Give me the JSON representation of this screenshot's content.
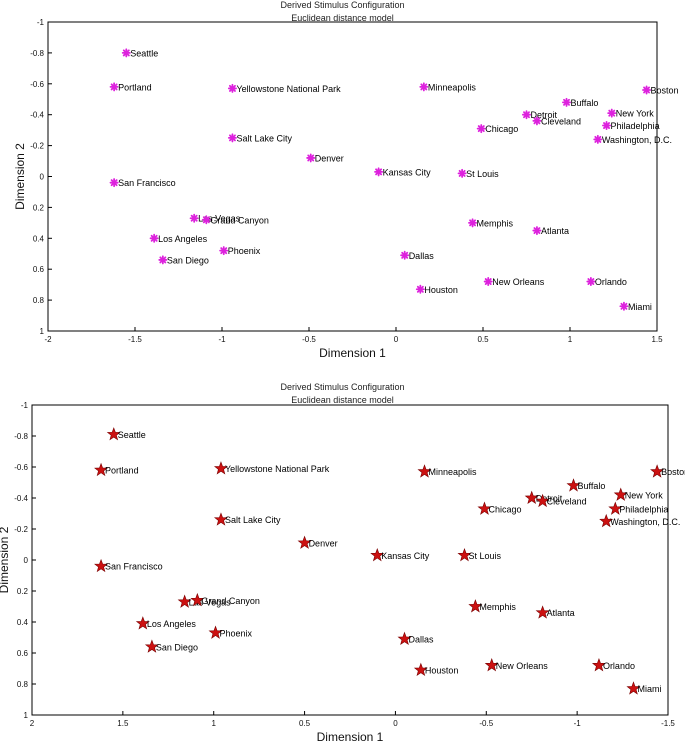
{
  "chart_data": [
    {
      "type": "scatter",
      "title": "Derived Stimulus Configuration",
      "subtitle": "Euclidean distance model",
      "xlabel": "Dimension 1",
      "ylabel": "Dimension 2",
      "xlim": [
        -2,
        1.5
      ],
      "ylim": [
        -1,
        1
      ],
      "x_reversed": false,
      "y_reversed": true,
      "xticks": [
        -2,
        -1.5,
        -1,
        -0.5,
        0,
        0.5,
        1,
        1.5
      ],
      "xtick_labels": [
        "-2",
        "-1.5",
        "-1",
        "-0.5",
        "0",
        "0.5",
        "1",
        "1.5"
      ],
      "yticks": [
        -1,
        -0.8,
        -0.6,
        -0.4,
        -0.2,
        0,
        0.2,
        0.4,
        0.6,
        0.8,
        1
      ],
      "ytick_labels": [
        "-1",
        "-0.8",
        "-0.6",
        "-0.4",
        "-0.2",
        "0",
        "0.2",
        "0.4",
        "0.6",
        "0.8",
        "1"
      ],
      "marker": "asterisk",
      "marker_color": "#dd22dd",
      "points": [
        {
          "label": "Seattle",
          "x": -1.55,
          "y": -0.8
        },
        {
          "label": "Portland",
          "x": -1.62,
          "y": -0.58
        },
        {
          "label": "Yellowstone National Park",
          "x": -0.94,
          "y": -0.57
        },
        {
          "label": "Minneapolis",
          "x": 0.16,
          "y": -0.58
        },
        {
          "label": "Boston",
          "x": 1.44,
          "y": -0.56
        },
        {
          "label": "Buffalo",
          "x": 0.98,
          "y": -0.48
        },
        {
          "label": "New York",
          "x": 1.24,
          "y": -0.41
        },
        {
          "label": "Detroit",
          "x": 0.75,
          "y": -0.4
        },
        {
          "label": "Cleveland",
          "x": 0.81,
          "y": -0.36
        },
        {
          "label": "Philadelphia",
          "x": 1.21,
          "y": -0.33
        },
        {
          "label": "Chicago",
          "x": 0.49,
          "y": -0.31
        },
        {
          "label": "Salt Lake City",
          "x": -0.94,
          "y": -0.25
        },
        {
          "label": "Washington, D.C.",
          "x": 1.16,
          "y": -0.24
        },
        {
          "label": "Denver",
          "x": -0.49,
          "y": -0.12
        },
        {
          "label": "Kansas City",
          "x": -0.1,
          "y": -0.03
        },
        {
          "label": "St Louis",
          "x": 0.38,
          "y": -0.02
        },
        {
          "label": "San Francisco",
          "x": -1.62,
          "y": 0.04
        },
        {
          "label": "Las Vegas",
          "x": -1.16,
          "y": 0.27
        },
        {
          "label": "Grand Canyon",
          "x": -1.09,
          "y": 0.28
        },
        {
          "label": "Memphis",
          "x": 0.44,
          "y": 0.3
        },
        {
          "label": "Atlanta",
          "x": 0.81,
          "y": 0.35
        },
        {
          "label": "Los Angeles",
          "x": -1.39,
          "y": 0.4
        },
        {
          "label": "Phoenix",
          "x": -0.99,
          "y": 0.48
        },
        {
          "label": "Dallas",
          "x": 0.05,
          "y": 0.51
        },
        {
          "label": "San Diego",
          "x": -1.34,
          "y": 0.54
        },
        {
          "label": "New Orleans",
          "x": 0.53,
          "y": 0.68
        },
        {
          "label": "Orlando",
          "x": 1.12,
          "y": 0.68
        },
        {
          "label": "Houston",
          "x": 0.14,
          "y": 0.73
        },
        {
          "label": "Miami",
          "x": 1.31,
          "y": 0.84
        }
      ]
    },
    {
      "type": "scatter",
      "title": "Derived Stimulus Configuration",
      "subtitle": "Euclidean distance model",
      "xlabel": "Dimension 1",
      "ylabel": "Dimension 2",
      "xlim": [
        2,
        -1.5
      ],
      "ylim": [
        -1,
        1
      ],
      "x_reversed": true,
      "y_reversed": true,
      "xticks": [
        2,
        1.5,
        1,
        0.5,
        0,
        -0.5,
        -1,
        -1.5
      ],
      "xtick_labels": [
        "2",
        "1.5",
        "1",
        "0.5",
        "0",
        "-0.5",
        "-1",
        "-1.5"
      ],
      "yticks": [
        -1,
        -0.8,
        -0.6,
        -0.4,
        -0.2,
        0,
        0.2,
        0.4,
        0.6,
        0.8,
        1
      ],
      "ytick_labels": [
        "-1",
        "-0.8",
        "-0.6",
        "-0.4",
        "-0.2",
        "0",
        "0.2",
        "0.4",
        "0.6",
        "0.8",
        "1"
      ],
      "marker": "star",
      "marker_color": "#cc1111",
      "points": [
        {
          "label": "Seattle",
          "x": 1.55,
          "y": -0.81
        },
        {
          "label": "Portland",
          "x": 1.62,
          "y": -0.58
        },
        {
          "label": "Yellowstone National Park",
          "x": 0.96,
          "y": -0.59
        },
        {
          "label": "Minneapolis",
          "x": -0.16,
          "y": -0.57
        },
        {
          "label": "Boston",
          "x": -1.44,
          "y": -0.57
        },
        {
          "label": "Buffalo",
          "x": -0.98,
          "y": -0.48
        },
        {
          "label": "New York",
          "x": -1.24,
          "y": -0.42
        },
        {
          "label": "Detroit",
          "x": -0.75,
          "y": -0.4
        },
        {
          "label": "Cleveland",
          "x": -0.81,
          "y": -0.38
        },
        {
          "label": "Philadelphia",
          "x": -1.21,
          "y": -0.33
        },
        {
          "label": "Chicago",
          "x": -0.49,
          "y": -0.33
        },
        {
          "label": "Salt Lake City",
          "x": 0.96,
          "y": -0.26
        },
        {
          "label": "Washington, D.C.",
          "x": -1.16,
          "y": -0.25
        },
        {
          "label": "Denver",
          "x": 0.5,
          "y": -0.11
        },
        {
          "label": "Kansas City",
          "x": 0.1,
          "y": -0.03
        },
        {
          "label": "St Louis",
          "x": -0.38,
          "y": -0.03
        },
        {
          "label": "San Francisco",
          "x": 1.62,
          "y": 0.04
        },
        {
          "label": "Las Vegas",
          "x": 1.16,
          "y": 0.27
        },
        {
          "label": "Grand Canyon",
          "x": 1.09,
          "y": 0.26
        },
        {
          "label": "Memphis",
          "x": -0.44,
          "y": 0.3
        },
        {
          "label": "Atlanta",
          "x": -0.81,
          "y": 0.34
        },
        {
          "label": "Los Angeles",
          "x": 1.39,
          "y": 0.41
        },
        {
          "label": "Phoenix",
          "x": 0.99,
          "y": 0.47
        },
        {
          "label": "Dallas",
          "x": -0.05,
          "y": 0.51
        },
        {
          "label": "San Diego",
          "x": 1.34,
          "y": 0.56
        },
        {
          "label": "New Orleans",
          "x": -0.53,
          "y": 0.68
        },
        {
          "label": "Orlando",
          "x": -1.12,
          "y": 0.68
        },
        {
          "label": "Houston",
          "x": -0.14,
          "y": 0.71
        },
        {
          "label": "Miami",
          "x": -1.31,
          "y": 0.83
        }
      ]
    }
  ]
}
